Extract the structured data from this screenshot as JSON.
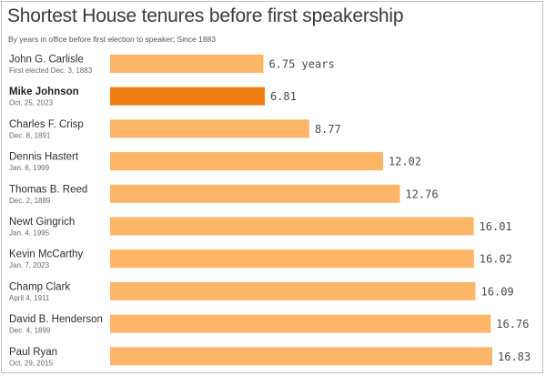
{
  "chart_data": {
    "type": "bar",
    "orientation": "horizontal",
    "title": "Shortest House tenures before first speakership",
    "subtitle": "By years in office before first election to speaker; Since 1883",
    "categories": [
      {
        "name": "John G. Carlisle",
        "date": "First elected Dec. 3, 1883",
        "value": 6.75,
        "label": "6.75 years",
        "highlight": false
      },
      {
        "name": "Mike Johnson",
        "date": "Oct. 25, 2023",
        "value": 6.81,
        "label": "6.81",
        "highlight": true
      },
      {
        "name": "Charles F. Crisp",
        "date": "Dec. 8, 1891",
        "value": 8.77,
        "label": "8.77",
        "highlight": false
      },
      {
        "name": "Dennis Hastert",
        "date": "Jan. 6, 1999",
        "value": 12.02,
        "label": "12.02",
        "highlight": false
      },
      {
        "name": "Thomas B. Reed",
        "date": "Dec. 2, 1889",
        "value": 12.76,
        "label": "12.76",
        "highlight": false
      },
      {
        "name": "Newt Gingrich",
        "date": "Jan. 4, 1995",
        "value": 16.01,
        "label": "16.01",
        "highlight": false
      },
      {
        "name": "Kevin McCarthy",
        "date": "Jan. 7, 2023",
        "value": 16.02,
        "label": "16.02",
        "highlight": false
      },
      {
        "name": "Champ Clark",
        "date": "April 4, 1911",
        "value": 16.09,
        "label": "16.09",
        "highlight": false
      },
      {
        "name": "David B. Henderson",
        "date": "Dec. 4, 1899",
        "value": 16.76,
        "label": "16.76",
        "highlight": false
      },
      {
        "name": "Paul Ryan",
        "date": "Oct. 29, 2015",
        "value": 16.83,
        "label": "16.83",
        "highlight": false
      }
    ],
    "xlim": [
      0,
      16.83
    ],
    "grid": false,
    "colors": {
      "bar": "#FDB567",
      "highlight": "#F27D10"
    }
  }
}
